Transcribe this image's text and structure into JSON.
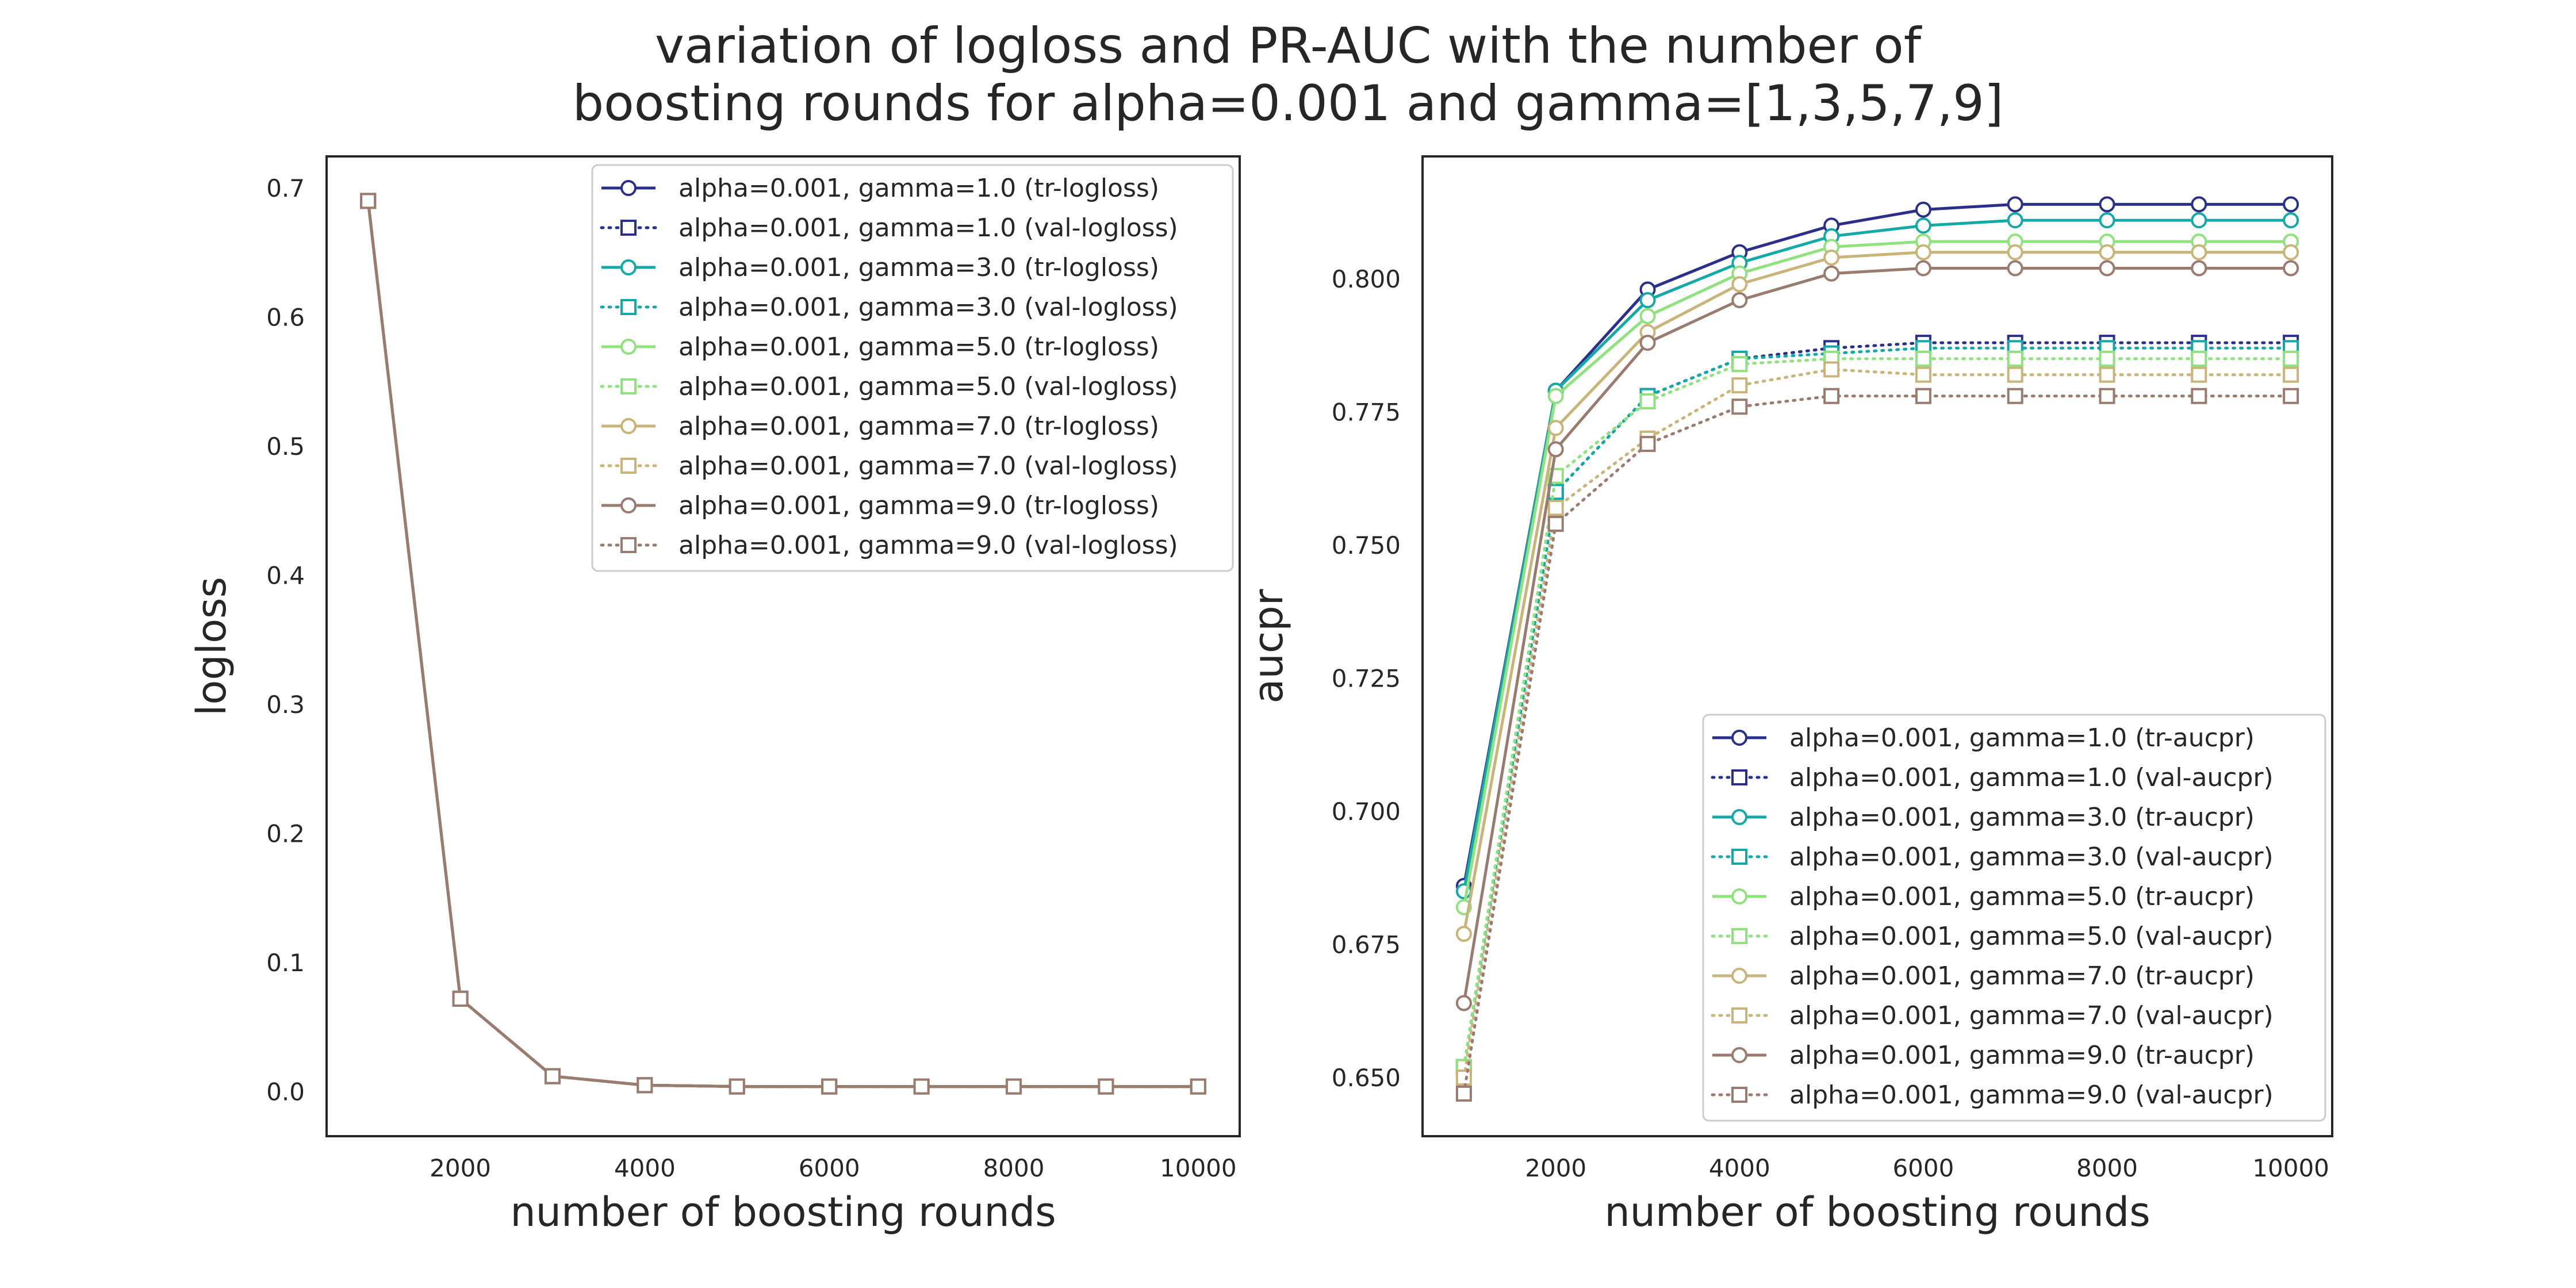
{
  "figure": {
    "title_line1": "variation of logloss and PR-AUC with the number of",
    "title_line2": "boosting rounds for alpha=0.001 and gamma=[1,3,5,7,9]"
  },
  "chart_data": [
    {
      "type": "line",
      "xlabel": "number of boosting rounds",
      "ylabel": "logloss",
      "x": [
        1000,
        2000,
        3000,
        4000,
        5000,
        6000,
        7000,
        8000,
        9000,
        10000
      ],
      "xticks": [
        2000,
        4000,
        6000,
        8000,
        10000
      ],
      "yticks": [
        0.0,
        0.1,
        0.2,
        0.3,
        0.4,
        0.5,
        0.6,
        0.7
      ],
      "xlim": [
        550,
        10450
      ],
      "ylim": [
        -0.0345,
        0.7245
      ],
      "grid": false,
      "legend_position": "upper right",
      "series": [
        {
          "name": "alpha=0.001, gamma=1.0 (tr-logloss)",
          "color": "#2b2f8c",
          "linestyle": "solid",
          "marker": "circle",
          "values": [
            0.69,
            0.072,
            0.012,
            0.005,
            0.004,
            0.004,
            0.004,
            0.004,
            0.004,
            0.004
          ]
        },
        {
          "name": "alpha=0.001, gamma=1.0 (val-logloss)",
          "color": "#2b2f8c",
          "linestyle": "dotted",
          "marker": "square",
          "values": [
            0.69,
            0.072,
            0.012,
            0.005,
            0.004,
            0.004,
            0.004,
            0.004,
            0.004,
            0.004
          ]
        },
        {
          "name": "alpha=0.001, gamma=3.0 (tr-logloss)",
          "color": "#13a9a6",
          "linestyle": "solid",
          "marker": "circle",
          "values": [
            0.69,
            0.072,
            0.012,
            0.005,
            0.004,
            0.004,
            0.004,
            0.004,
            0.004,
            0.004
          ]
        },
        {
          "name": "alpha=0.001, gamma=3.0 (val-logloss)",
          "color": "#13a9a6",
          "linestyle": "dotted",
          "marker": "square",
          "values": [
            0.69,
            0.072,
            0.012,
            0.005,
            0.004,
            0.004,
            0.004,
            0.004,
            0.004,
            0.004
          ]
        },
        {
          "name": "alpha=0.001, gamma=5.0 (tr-logloss)",
          "color": "#8fe27e",
          "linestyle": "solid",
          "marker": "circle",
          "values": [
            0.69,
            0.072,
            0.012,
            0.005,
            0.004,
            0.004,
            0.004,
            0.004,
            0.004,
            0.004
          ]
        },
        {
          "name": "alpha=0.001, gamma=5.0 (val-logloss)",
          "color": "#8fe27e",
          "linestyle": "dotted",
          "marker": "square",
          "values": [
            0.69,
            0.072,
            0.012,
            0.005,
            0.004,
            0.004,
            0.004,
            0.004,
            0.004,
            0.004
          ]
        },
        {
          "name": "alpha=0.001, gamma=7.0 (tr-logloss)",
          "color": "#c9b57a",
          "linestyle": "solid",
          "marker": "circle",
          "values": [
            0.69,
            0.072,
            0.012,
            0.005,
            0.004,
            0.004,
            0.004,
            0.004,
            0.004,
            0.004
          ]
        },
        {
          "name": "alpha=0.001, gamma=7.0 (val-logloss)",
          "color": "#c9b57a",
          "linestyle": "dotted",
          "marker": "square",
          "values": [
            0.69,
            0.072,
            0.012,
            0.005,
            0.004,
            0.004,
            0.004,
            0.004,
            0.004,
            0.004
          ]
        },
        {
          "name": "alpha=0.001, gamma=9.0 (tr-logloss)",
          "color": "#9a7b6f",
          "linestyle": "solid",
          "marker": "circle",
          "values": [
            0.69,
            0.072,
            0.012,
            0.005,
            0.004,
            0.004,
            0.004,
            0.004,
            0.004,
            0.004
          ]
        },
        {
          "name": "alpha=0.001, gamma=9.0 (val-logloss)",
          "color": "#9a7b6f",
          "linestyle": "dotted",
          "marker": "square",
          "values": [
            0.69,
            0.072,
            0.012,
            0.005,
            0.004,
            0.004,
            0.004,
            0.004,
            0.004,
            0.004
          ]
        }
      ]
    },
    {
      "type": "line",
      "xlabel": "number of boosting rounds",
      "ylabel": "aucpr",
      "x": [
        1000,
        2000,
        3000,
        4000,
        5000,
        6000,
        7000,
        8000,
        9000,
        10000
      ],
      "xticks": [
        2000,
        4000,
        6000,
        8000,
        10000
      ],
      "yticks": [
        0.65,
        0.675,
        0.7,
        0.725,
        0.75,
        0.775,
        0.8
      ],
      "ytick_labels": [
        "0.650",
        "0.675",
        "0.700",
        "0.725",
        "0.750",
        "0.775",
        "0.800"
      ],
      "xlim": [
        550,
        10450
      ],
      "ylim": [
        0.639,
        0.823
      ],
      "grid": false,
      "legend_position": "lower right",
      "series": [
        {
          "name": "alpha=0.001, gamma=1.0 (tr-aucpr)",
          "color": "#2b2f8c",
          "linestyle": "solid",
          "marker": "circle",
          "values": [
            0.686,
            0.779,
            0.798,
            0.805,
            0.81,
            0.813,
            0.814,
            0.814,
            0.814,
            0.814
          ]
        },
        {
          "name": "alpha=0.001, gamma=1.0 (val-aucpr)",
          "color": "#2b2f8c",
          "linestyle": "dotted",
          "marker": "square",
          "values": [
            0.652,
            0.76,
            0.778,
            0.785,
            0.787,
            0.788,
            0.788,
            0.788,
            0.788,
            0.788
          ]
        },
        {
          "name": "alpha=0.001, gamma=3.0 (tr-aucpr)",
          "color": "#13a9a6",
          "linestyle": "solid",
          "marker": "circle",
          "values": [
            0.685,
            0.779,
            0.796,
            0.803,
            0.808,
            0.81,
            0.811,
            0.811,
            0.811,
            0.811
          ]
        },
        {
          "name": "alpha=0.001, gamma=3.0 (val-aucpr)",
          "color": "#13a9a6",
          "linestyle": "dotted",
          "marker": "square",
          "values": [
            0.652,
            0.76,
            0.778,
            0.785,
            0.786,
            0.787,
            0.787,
            0.787,
            0.787,
            0.787
          ]
        },
        {
          "name": "alpha=0.001, gamma=5.0 (tr-aucpr)",
          "color": "#8fe27e",
          "linestyle": "solid",
          "marker": "circle",
          "values": [
            0.682,
            0.778,
            0.793,
            0.801,
            0.806,
            0.807,
            0.807,
            0.807,
            0.807,
            0.807
          ]
        },
        {
          "name": "alpha=0.001, gamma=5.0 (val-aucpr)",
          "color": "#8fe27e",
          "linestyle": "dotted",
          "marker": "square",
          "values": [
            0.652,
            0.763,
            0.777,
            0.784,
            0.785,
            0.785,
            0.785,
            0.785,
            0.785,
            0.785
          ]
        },
        {
          "name": "alpha=0.001, gamma=7.0 (tr-aucpr)",
          "color": "#c9b57a",
          "linestyle": "solid",
          "marker": "circle",
          "values": [
            0.677,
            0.772,
            0.79,
            0.799,
            0.804,
            0.805,
            0.805,
            0.805,
            0.805,
            0.805
          ]
        },
        {
          "name": "alpha=0.001, gamma=7.0 (val-aucpr)",
          "color": "#c9b57a",
          "linestyle": "dotted",
          "marker": "square",
          "values": [
            0.65,
            0.757,
            0.77,
            0.78,
            0.783,
            0.782,
            0.782,
            0.782,
            0.782,
            0.782
          ]
        },
        {
          "name": "alpha=0.001, gamma=9.0 (tr-aucpr)",
          "color": "#9a7b6f",
          "linestyle": "solid",
          "marker": "circle",
          "values": [
            0.664,
            0.768,
            0.788,
            0.796,
            0.801,
            0.802,
            0.802,
            0.802,
            0.802,
            0.802
          ]
        },
        {
          "name": "alpha=0.001, gamma=9.0 (val-aucpr)",
          "color": "#9a7b6f",
          "linestyle": "dotted",
          "marker": "square",
          "values": [
            0.647,
            0.754,
            0.769,
            0.776,
            0.778,
            0.778,
            0.778,
            0.778,
            0.778,
            0.778
          ]
        }
      ]
    }
  ]
}
